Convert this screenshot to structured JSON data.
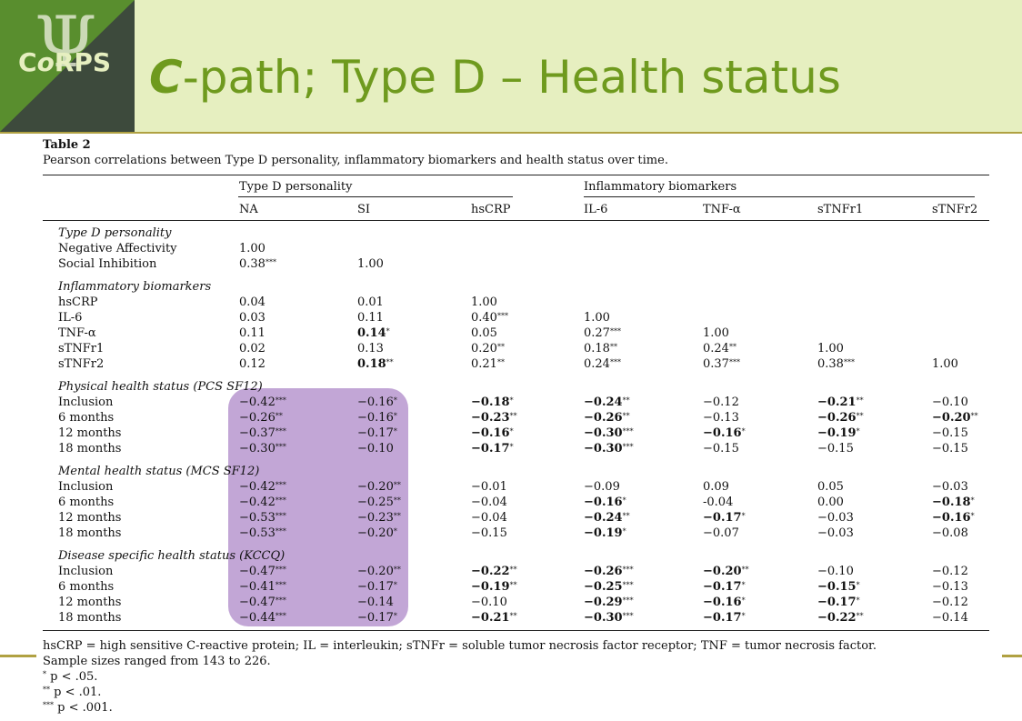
{
  "slide": {
    "logo_text_pre": "C",
    "logo_text_o": "o",
    "logo_text_post": "RPS",
    "title_c": "C",
    "title_rest": "-path; Type D – Health status",
    "accent_color": "#6f9a1e",
    "header_bg": "#e6efc0",
    "highlight_color": "#c2a6d6"
  },
  "table": {
    "label": "Table 2",
    "caption": "Pearson correlations between Type D personality, inflammatory biomarkers and health status over time.",
    "group_headers": [
      "Type D personality",
      "Inflammatory biomarkers"
    ],
    "columns": [
      "NA",
      "SI",
      "hsCRP",
      "IL-6",
      "TNF-α",
      "sTNFr1",
      "sTNFr2"
    ],
    "sections": [
      {
        "title": "Type D personality",
        "rows": [
          {
            "label": "Negative Affectivity",
            "cells": [
              [
                "1.00",
                "",
                0
              ]
            ]
          },
          {
            "label": "Social Inhibition",
            "cells": [
              [
                "0.38",
                "***",
                0
              ],
              [
                "1.00",
                "",
                0
              ]
            ]
          }
        ]
      },
      {
        "title": "Inflammatory biomarkers",
        "rows": [
          {
            "label": "hsCRP",
            "cells": [
              [
                "0.04",
                "",
                0
              ],
              [
                "0.01",
                "",
                0
              ],
              [
                "1.00",
                "",
                0
              ]
            ]
          },
          {
            "label": "IL-6",
            "cells": [
              [
                "0.03",
                "",
                0
              ],
              [
                "0.11",
                "",
                0
              ],
              [
                "0.40",
                "***",
                0
              ],
              [
                "1.00",
                "",
                0
              ]
            ]
          },
          {
            "label": "TNF-α",
            "cells": [
              [
                "0.11",
                "",
                0
              ],
              [
                "0.14",
                "*",
                1
              ],
              [
                "0.05",
                "",
                0
              ],
              [
                "0.27",
                "***",
                0
              ],
              [
                "1.00",
                "",
                0
              ]
            ]
          },
          {
            "label": "sTNFr1",
            "cells": [
              [
                "0.02",
                "",
                0
              ],
              [
                "0.13",
                "",
                0
              ],
              [
                "0.20",
                "**",
                0
              ],
              [
                "0.18",
                "**",
                0
              ],
              [
                "0.24",
                "**",
                0
              ],
              [
                "1.00",
                "",
                0
              ]
            ]
          },
          {
            "label": "sTNFr2",
            "cells": [
              [
                "0.12",
                "",
                0
              ],
              [
                "0.18",
                "**",
                1
              ],
              [
                "0.21",
                "**",
                0
              ],
              [
                "0.24",
                "***",
                0
              ],
              [
                "0.37",
                "***",
                0
              ],
              [
                "0.38",
                "***",
                0
              ],
              [
                "1.00",
                "",
                0
              ]
            ]
          }
        ]
      },
      {
        "title": "Physical health status (PCS SF12)",
        "rows": [
          {
            "label": "Inclusion",
            "cells": [
              [
                "−0.42",
                "***",
                0
              ],
              [
                "−0.16",
                "*",
                0
              ],
              [
                "−0.18",
                "*",
                1
              ],
              [
                "−0.24",
                "**",
                1
              ],
              [
                "−0.12",
                "",
                0
              ],
              [
                "−0.21",
                "**",
                1
              ],
              [
                "−0.10",
                "",
                0
              ]
            ]
          },
          {
            "label": "6 months",
            "cells": [
              [
                "−0.26",
                "**",
                0
              ],
              [
                "−0.16",
                "*",
                0
              ],
              [
                "−0.23",
                "**",
                1
              ],
              [
                "−0.26",
                "**",
                1
              ],
              [
                "−0.13",
                "",
                0
              ],
              [
                "−0.26",
                "**",
                1
              ],
              [
                "−0.20",
                "**",
                1
              ]
            ]
          },
          {
            "label": "12 months",
            "cells": [
              [
                "−0.37",
                "***",
                0
              ],
              [
                "−0.17",
                "*",
                0
              ],
              [
                "−0.16",
                "*",
                1
              ],
              [
                "−0.30",
                "***",
                1
              ],
              [
                "−0.16",
                "*",
                1
              ],
              [
                "−0.19",
                "*",
                1
              ],
              [
                "−0.15",
                "",
                0
              ]
            ]
          },
          {
            "label": "18 months",
            "cells": [
              [
                "−0.30",
                "***",
                0
              ],
              [
                "−0.10",
                "",
                0
              ],
              [
                "−0.17",
                "*",
                1
              ],
              [
                "−0.30",
                "***",
                1
              ],
              [
                "−0.15",
                "",
                0
              ],
              [
                "−0.15",
                "",
                0
              ],
              [
                "−0.15",
                "",
                0
              ]
            ]
          }
        ]
      },
      {
        "title": "Mental health status (MCS SF12)",
        "rows": [
          {
            "label": "Inclusion",
            "cells": [
              [
                "−0.42",
                "***",
                0
              ],
              [
                "−0.20",
                "**",
                0
              ],
              [
                "−0.01",
                "",
                0
              ],
              [
                "−0.09",
                "",
                0
              ],
              [
                "0.09",
                "",
                0
              ],
              [
                "0.05",
                "",
                0
              ],
              [
                "−0.03",
                "",
                0
              ]
            ]
          },
          {
            "label": "6 months",
            "cells": [
              [
                "−0.42",
                "***",
                0
              ],
              [
                "−0.25",
                "**",
                0
              ],
              [
                "−0.04",
                "",
                0
              ],
              [
                "−0.16",
                "*",
                1
              ],
              [
                "-0.04",
                "",
                0
              ],
              [
                "0.00",
                "",
                0
              ],
              [
                "−0.18",
                "*",
                1
              ]
            ]
          },
          {
            "label": "12 months",
            "cells": [
              [
                "−0.53",
                "***",
                0
              ],
              [
                "−0.23",
                "**",
                0
              ],
              [
                "−0.04",
                "",
                0
              ],
              [
                "−0.24",
                "**",
                1
              ],
              [
                "−0.17",
                "*",
                1
              ],
              [
                "−0.03",
                "",
                0
              ],
              [
                "−0.16",
                "*",
                1
              ]
            ]
          },
          {
            "label": "18 months",
            "cells": [
              [
                "−0.53",
                "***",
                0
              ],
              [
                "−0.20",
                "*",
                0
              ],
              [
                "−0.15",
                "",
                0
              ],
              [
                "−0.19",
                "*",
                1
              ],
              [
                "−0.07",
                "",
                0
              ],
              [
                "−0.03",
                "",
                0
              ],
              [
                "−0.08",
                "",
                0
              ]
            ]
          }
        ]
      },
      {
        "title": "Disease specific health status (KCCQ)",
        "rows": [
          {
            "label": "Inclusion",
            "cells": [
              [
                "−0.47",
                "***",
                0
              ],
              [
                "−0.20",
                "**",
                0
              ],
              [
                "−0.22",
                "**",
                1
              ],
              [
                "−0.26",
                "***",
                1
              ],
              [
                "−0.20",
                "**",
                1
              ],
              [
                "−0.10",
                "",
                0
              ],
              [
                "−0.12",
                "",
                0
              ]
            ]
          },
          {
            "label": "6 months",
            "cells": [
              [
                "−0.41",
                "***",
                0
              ],
              [
                "−0.17",
                "*",
                0
              ],
              [
                "−0.19",
                "**",
                1
              ],
              [
                "−0.25",
                "***",
                1
              ],
              [
                "−0.17",
                "*",
                1
              ],
              [
                "−0.15",
                "*",
                1
              ],
              [
                "−0.13",
                "",
                0
              ]
            ]
          },
          {
            "label": "12 months",
            "cells": [
              [
                "−0.47",
                "***",
                0
              ],
              [
                "−0.14",
                "",
                0
              ],
              [
                "−0.10",
                "",
                0
              ],
              [
                "−0.29",
                "***",
                1
              ],
              [
                "−0.16",
                "*",
                1
              ],
              [
                "−0.17",
                "*",
                1
              ],
              [
                "−0.12",
                "",
                0
              ]
            ]
          },
          {
            "label": "18 months",
            "cells": [
              [
                "−0.44",
                "***",
                0
              ],
              [
                "−0.17",
                "*",
                0
              ],
              [
                "−0.21",
                "**",
                1
              ],
              [
                "−0.30",
                "***",
                1
              ],
              [
                "−0.17",
                "*",
                1
              ],
              [
                "−0.22",
                "**",
                1
              ],
              [
                "−0.14",
                "",
                0
              ]
            ]
          }
        ]
      }
    ],
    "footnotes": [
      {
        "mark": "",
        "text": "hsCRP = high sensitive C-reactive protein; IL = interleukin; sTNFr = soluble tumor necrosis factor receptor; TNF = tumor necrosis factor."
      },
      {
        "mark": "",
        "text": "Sample sizes ranged from 143 to 226."
      },
      {
        "mark": "*",
        "text": "p < .05."
      },
      {
        "mark": "**",
        "text": "p < .01."
      },
      {
        "mark": "***",
        "text": "p < .001."
      }
    ]
  }
}
